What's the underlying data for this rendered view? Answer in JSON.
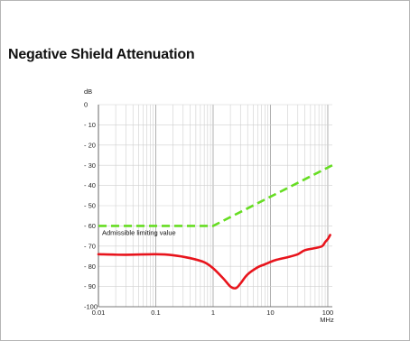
{
  "chart_data": {
    "type": "line",
    "title": "Negative Shield Attenuation",
    "ylabel": "dB",
    "xlabel": "MHz",
    "x_scale": "log",
    "xlim": [
      0.01,
      120
    ],
    "ylim": [
      -100,
      0
    ],
    "grid": true,
    "x_tick_labels": [
      "0.01",
      "0.1",
      "1",
      "10",
      "100"
    ],
    "x_tick_values": [
      0.01,
      0.1,
      1,
      10,
      100
    ],
    "y_tick_labels": [
      "0",
      "- 10",
      "- 20",
      "- 30",
      "- 40",
      "- 50",
      "- 60",
      "- 70",
      "- 80",
      "- 90",
      "-100"
    ],
    "y_tick_values": [
      0,
      -10,
      -20,
      -30,
      -40,
      -50,
      -60,
      -70,
      -80,
      -90,
      -100
    ],
    "series": [
      {
        "name": "Admissible limiting value",
        "color": "#66dd22",
        "style": "dashed",
        "x": [
          0.01,
          1,
          120
        ],
        "y": [
          -60,
          -60,
          -30
        ]
      },
      {
        "color": "#e8141c",
        "style": "solid",
        "x": [
          0.01,
          0.03,
          0.1,
          0.2,
          0.4,
          0.7,
          1,
          1.5,
          2,
          2.5,
          3,
          4,
          6,
          8,
          12,
          20,
          30,
          40,
          60,
          80,
          90,
          100,
          110
        ],
        "y": [
          -74,
          -74.3,
          -74,
          -74.5,
          -76,
          -78,
          -81,
          -86,
          -90,
          -90.8,
          -88.5,
          -84,
          -80.5,
          -79,
          -77,
          -75.5,
          -74,
          -72,
          -71,
          -70,
          -68,
          -66.5,
          -64.5
        ]
      }
    ]
  }
}
